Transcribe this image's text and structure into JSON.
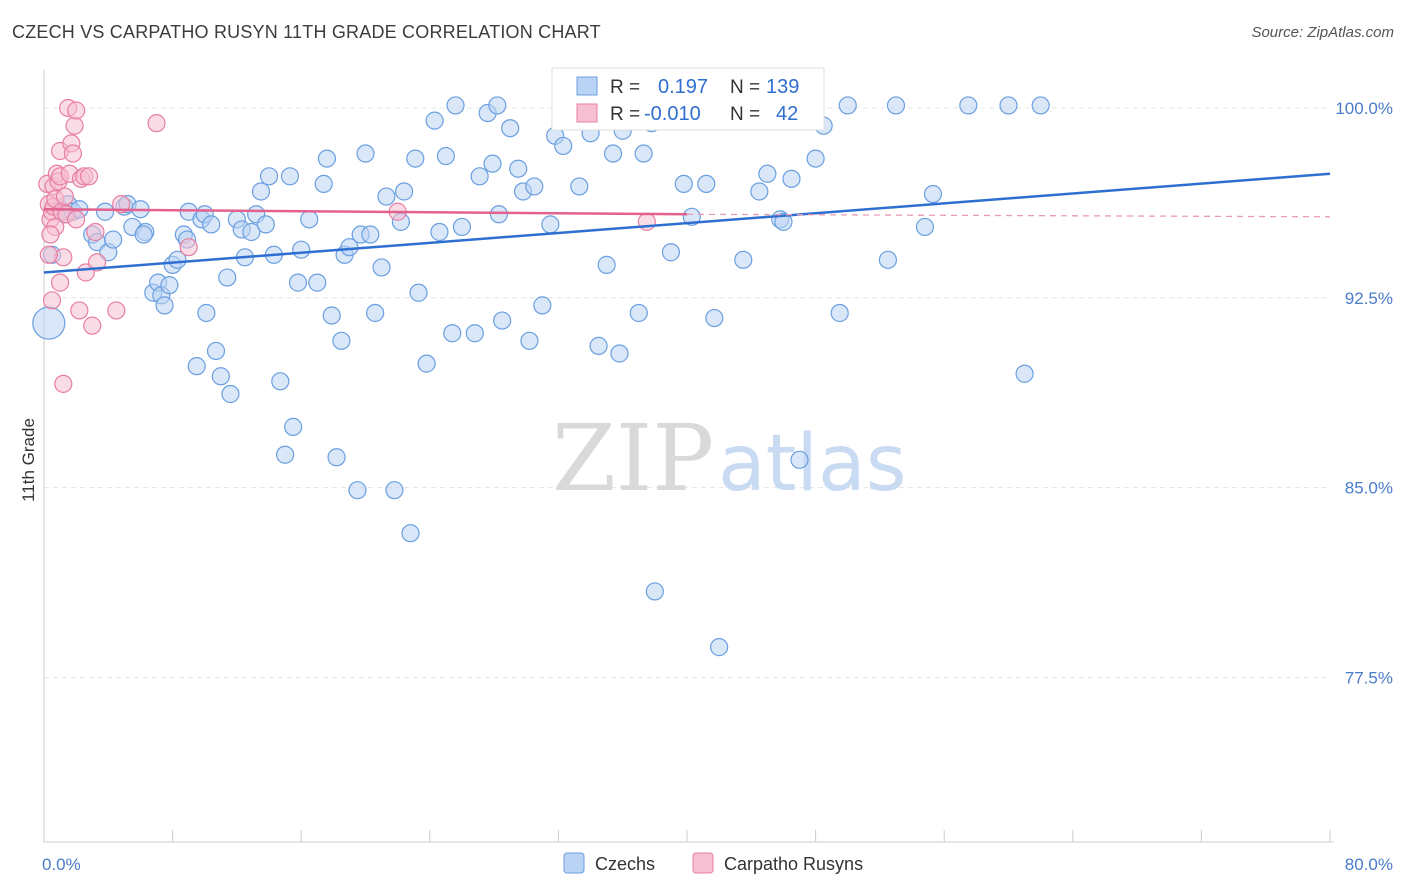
{
  "title": "CZECH VS CARPATHO RUSYN 11TH GRADE CORRELATION CHART",
  "source": "Source: ZipAtlas.com",
  "watermark": {
    "zip": "ZIP",
    "atlas": "atlas"
  },
  "chart_data": {
    "type": "scatter",
    "xlabel": "",
    "ylabel": "11th Grade",
    "xlim": [
      0,
      80
    ],
    "ylim": [
      71.0,
      101.5
    ],
    "x_tick_labels": [
      "0.0%",
      "80.0%"
    ],
    "y_ticks": [
      77.5,
      85.0,
      92.5,
      100.0
    ],
    "y_tick_labels": [
      "77.5%",
      "85.0%",
      "92.5%",
      "100.0%"
    ],
    "grid": true,
    "legend": {
      "position": "top-center",
      "rows": [
        {
          "r_label": "R =",
          "r_value": "0.197",
          "n_label": "N =",
          "n_value": "139"
        },
        {
          "r_label": "R =",
          "r_value": "-0.010",
          "n_label": "N =",
          "n_value": "42"
        }
      ]
    },
    "series": [
      {
        "name": "Czechs",
        "color": "#6a9fe0",
        "fill": "#b9d3f4",
        "trend": {
          "x": [
            0,
            80
          ],
          "y": [
            93.5,
            97.4
          ]
        },
        "points": [
          [
            0.3,
            91.5
          ],
          [
            0.5,
            94.2
          ],
          [
            1.0,
            96.0
          ],
          [
            1.3,
            95.8
          ],
          [
            1.5,
            96.2
          ],
          [
            1.8,
            95.9
          ],
          [
            2.2,
            96.0
          ],
          [
            3.0,
            95.0
          ],
          [
            3.3,
            94.7
          ],
          [
            3.8,
            95.9
          ],
          [
            4.0,
            94.3
          ],
          [
            4.3,
            94.8
          ],
          [
            5.0,
            96.1
          ],
          [
            5.2,
            96.2
          ],
          [
            5.5,
            95.3
          ],
          [
            6.0,
            96.0
          ],
          [
            6.3,
            95.1
          ],
          [
            6.2,
            95.0
          ],
          [
            6.8,
            92.7
          ],
          [
            7.1,
            93.1
          ],
          [
            7.3,
            92.6
          ],
          [
            7.5,
            92.2
          ],
          [
            7.8,
            93.0
          ],
          [
            8.0,
            93.8
          ],
          [
            8.3,
            94.0
          ],
          [
            8.7,
            95.0
          ],
          [
            8.9,
            94.8
          ],
          [
            9.0,
            95.9
          ],
          [
            9.5,
            89.8
          ],
          [
            9.8,
            95.6
          ],
          [
            10.0,
            95.8
          ],
          [
            10.1,
            91.9
          ],
          [
            10.4,
            95.4
          ],
          [
            10.7,
            90.4
          ],
          [
            11.0,
            89.4
          ],
          [
            11.4,
            93.3
          ],
          [
            11.6,
            88.7
          ],
          [
            12.0,
            95.6
          ],
          [
            12.3,
            95.2
          ],
          [
            12.5,
            94.1
          ],
          [
            12.9,
            95.1
          ],
          [
            13.2,
            95.8
          ],
          [
            13.5,
            96.7
          ],
          [
            13.8,
            95.4
          ],
          [
            14.0,
            97.3
          ],
          [
            14.3,
            94.2
          ],
          [
            14.7,
            89.2
          ],
          [
            15.0,
            86.3
          ],
          [
            15.3,
            97.3
          ],
          [
            15.5,
            87.4
          ],
          [
            15.8,
            93.1
          ],
          [
            16.0,
            94.4
          ],
          [
            16.5,
            95.6
          ],
          [
            17.0,
            93.1
          ],
          [
            17.4,
            97.0
          ],
          [
            17.6,
            98.0
          ],
          [
            17.9,
            91.8
          ],
          [
            18.2,
            86.2
          ],
          [
            18.5,
            90.8
          ],
          [
            18.7,
            94.2
          ],
          [
            19.0,
            94.5
          ],
          [
            19.5,
            84.9
          ],
          [
            19.7,
            95.0
          ],
          [
            20.0,
            98.2
          ],
          [
            20.3,
            95.0
          ],
          [
            20.6,
            91.9
          ],
          [
            21.0,
            93.7
          ],
          [
            21.3,
            96.5
          ],
          [
            21.8,
            84.9
          ],
          [
            22.2,
            95.5
          ],
          [
            22.4,
            96.7
          ],
          [
            22.8,
            83.2
          ],
          [
            23.1,
            98.0
          ],
          [
            23.3,
            92.7
          ],
          [
            23.8,
            89.9
          ],
          [
            24.3,
            99.5
          ],
          [
            24.6,
            95.1
          ],
          [
            25.0,
            98.1
          ],
          [
            25.4,
            91.1
          ],
          [
            25.6,
            100.1
          ],
          [
            26.0,
            95.3
          ],
          [
            26.8,
            91.1
          ],
          [
            27.1,
            97.3
          ],
          [
            27.6,
            99.8
          ],
          [
            27.9,
            97.8
          ],
          [
            28.2,
            100.1
          ],
          [
            28.3,
            95.8
          ],
          [
            28.5,
            91.6
          ],
          [
            29.0,
            99.2
          ],
          [
            29.5,
            97.6
          ],
          [
            29.8,
            96.7
          ],
          [
            30.2,
            90.8
          ],
          [
            30.5,
            96.9
          ],
          [
            31.0,
            92.2
          ],
          [
            31.5,
            95.4
          ],
          [
            31.8,
            98.9
          ],
          [
            32.3,
            98.5
          ],
          [
            32.7,
            99.5
          ],
          [
            33.3,
            96.9
          ],
          [
            34.0,
            99.0
          ],
          [
            34.5,
            90.6
          ],
          [
            35.0,
            93.8
          ],
          [
            35.4,
            98.2
          ],
          [
            35.8,
            90.3
          ],
          [
            36.0,
            99.1
          ],
          [
            36.5,
            100.1
          ],
          [
            37.0,
            91.9
          ],
          [
            37.3,
            98.2
          ],
          [
            37.8,
            99.4
          ],
          [
            38.0,
            80.9
          ],
          [
            39.0,
            94.3
          ],
          [
            39.8,
            97.0
          ],
          [
            40.3,
            95.7
          ],
          [
            40.8,
            100.1
          ],
          [
            41.2,
            97.0
          ],
          [
            41.7,
            91.7
          ],
          [
            42.0,
            78.7
          ],
          [
            43.0,
            100.0
          ],
          [
            43.5,
            94.0
          ],
          [
            44.5,
            96.7
          ],
          [
            45.0,
            97.4
          ],
          [
            45.8,
            95.6
          ],
          [
            46.0,
            95.5
          ],
          [
            46.5,
            97.2
          ],
          [
            47.0,
            86.1
          ],
          [
            47.5,
            99.8
          ],
          [
            48.0,
            98.0
          ],
          [
            48.5,
            99.3
          ],
          [
            49.5,
            91.9
          ],
          [
            50.0,
            100.1
          ],
          [
            52.5,
            94.0
          ],
          [
            53.0,
            100.1
          ],
          [
            54.8,
            95.3
          ],
          [
            55.3,
            96.6
          ],
          [
            57.5,
            100.1
          ],
          [
            60.0,
            100.1
          ],
          [
            61.0,
            89.5
          ],
          [
            62.0,
            100.1
          ]
        ]
      },
      {
        "name": "Carpatho Rusyns",
        "color": "#e87fa2",
        "fill": "#f6bfd2",
        "trend": {
          "x": [
            0,
            40
          ],
          "y": [
            96.0,
            95.8
          ],
          "dash_to": [
            80,
            95.7
          ]
        },
        "points": [
          [
            0.2,
            97.0
          ],
          [
            0.3,
            96.2
          ],
          [
            0.4,
            95.6
          ],
          [
            0.5,
            95.9
          ],
          [
            0.6,
            96.1
          ],
          [
            0.6,
            96.9
          ],
          [
            0.7,
            96.4
          ],
          [
            0.7,
            95.3
          ],
          [
            0.8,
            97.4
          ],
          [
            0.9,
            97.1
          ],
          [
            1.0,
            98.3
          ],
          [
            1.0,
            97.3
          ],
          [
            1.1,
            95.9
          ],
          [
            1.2,
            94.1
          ],
          [
            1.2,
            89.1
          ],
          [
            1.3,
            96.5
          ],
          [
            1.4,
            95.8
          ],
          [
            1.5,
            100.0
          ],
          [
            1.6,
            97.4
          ],
          [
            1.7,
            98.6
          ],
          [
            1.8,
            98.2
          ],
          [
            1.9,
            99.3
          ],
          [
            2.0,
            99.9
          ],
          [
            2.0,
            95.6
          ],
          [
            2.2,
            92.0
          ],
          [
            2.3,
            97.2
          ],
          [
            2.5,
            97.3
          ],
          [
            2.6,
            93.5
          ],
          [
            2.8,
            97.3
          ],
          [
            3.0,
            91.4
          ],
          [
            3.2,
            95.1
          ],
          [
            3.3,
            93.9
          ],
          [
            1.0,
            93.1
          ],
          [
            0.5,
            92.4
          ],
          [
            0.3,
            94.2
          ],
          [
            0.4,
            95.0
          ],
          [
            4.5,
            92.0
          ],
          [
            4.8,
            96.2
          ],
          [
            7.0,
            99.4
          ],
          [
            9.0,
            94.5
          ],
          [
            22.0,
            95.9
          ],
          [
            37.5,
            95.5
          ]
        ]
      }
    ]
  },
  "bottom_legend": [
    {
      "label": "Czechs",
      "color": "#b9d3f4",
      "stroke": "#6a9fe0"
    },
    {
      "label": "Carpatho Rusyns",
      "color": "#f6bfd2",
      "stroke": "#e87fa2"
    }
  ]
}
